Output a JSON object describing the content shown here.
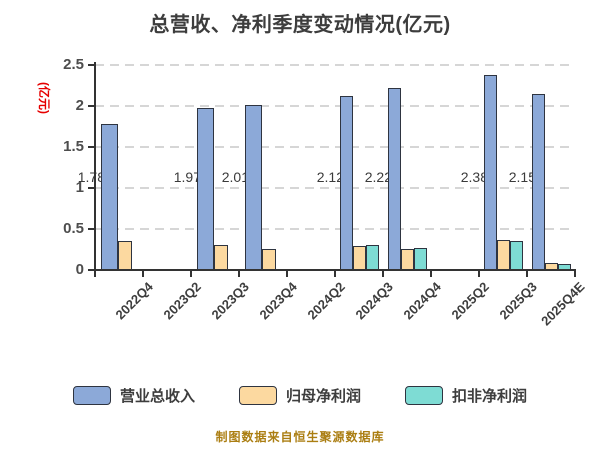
{
  "title": "总营收、净利季度变动情况(亿元)",
  "y_axis": {
    "label": "(亿元)",
    "label_color": "#e60000",
    "tick_labels": [
      "0",
      "0.5",
      "1",
      "1.5",
      "2",
      "2.5"
    ]
  },
  "footer": "制图数据来自恒生聚源数据库",
  "colors": {
    "title_text": "#3d3d3d",
    "axis": "#333333",
    "grid": "#d6d6d6",
    "bar_border": "#2e3440",
    "bar_blue": "#8ca9d8",
    "bar_yellow": "#fcd9a0",
    "bar_teal": "#7edcd4",
    "footer_text": "#ab7e12",
    "y_label_red": "#e60000"
  },
  "legend": {
    "position": "bottom",
    "items": [
      {
        "label": "营业总收入",
        "color": "#8ca9d8"
      },
      {
        "label": "归母净利润",
        "color": "#fcd9a0"
      },
      {
        "label": "扣非净利润",
        "color": "#7edcd4"
      }
    ]
  },
  "chart_data": {
    "type": "bar",
    "title": "总营收、净利季度变动情况(亿元)",
    "ylabel": "(亿元)",
    "ylim": [
      0,
      2.5
    ],
    "y_ticks": [
      0,
      0.5,
      1,
      1.5,
      2,
      2.5
    ],
    "grid": "horizontal-dashed",
    "legend_position": "bottom",
    "categories": [
      "2022Q4",
      "2023Q2",
      "2023Q3",
      "2023Q4",
      "2024Q2",
      "2024Q3",
      "2024Q4",
      "2025Q2",
      "2025Q3",
      "2025Q4E"
    ],
    "series": [
      {
        "name": "营业总收入",
        "key": "total-revenue",
        "color": "#8ca9d8",
        "values": [
          1.78,
          null,
          1.97,
          2.01,
          null,
          2.12,
          2.22,
          null,
          2.38,
          2.15
        ],
        "labels": [
          "1.78",
          null,
          "1.97",
          "2.01",
          null,
          "2.12",
          "2.22",
          null,
          "2.38",
          "2.15"
        ]
      },
      {
        "name": "归母净利润",
        "key": "net-profit",
        "color": "#fcd9a0",
        "values": [
          0.35,
          null,
          0.31,
          0.26,
          null,
          0.29,
          0.26,
          null,
          0.36,
          0.09
        ]
      },
      {
        "name": "扣非净利润",
        "key": "deducted-net-profit",
        "color": "#7edcd4",
        "values": [
          null,
          null,
          null,
          null,
          null,
          0.3,
          0.27,
          null,
          0.35,
          0.07
        ]
      }
    ]
  }
}
